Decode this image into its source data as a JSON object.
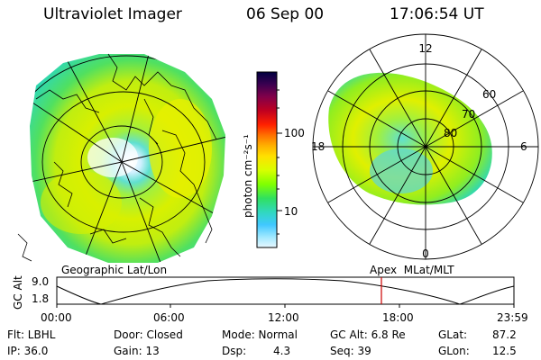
{
  "header": {
    "title": "Ultraviolet Imager",
    "date": "06 Sep 00",
    "time": "17:06:54 UT"
  },
  "colorbar": {
    "unit_label": "photon cm⁻²s⁻¹",
    "ticks": [
      "100",
      "10"
    ],
    "scale": "log",
    "colors": [
      "#000040",
      "#3a0050",
      "#80004a",
      "#c00020",
      "#ff2000",
      "#ff7000",
      "#ffb000",
      "#ffe000",
      "#d8ff00",
      "#80ff00",
      "#30e060",
      "#30d8c0",
      "#40c8ff",
      "#a0e8ff",
      "#e8f8ff"
    ]
  },
  "left_panel": {
    "caption": "Geographic Lat/Lon"
  },
  "right_panel": {
    "caption": "Apex  MLat/MLT",
    "mlt_labels": [
      "12",
      "18",
      "6",
      "0"
    ],
    "lat_labels": [
      "60",
      "70",
      "80"
    ]
  },
  "altitude_plot": {
    "ylabel": "GC Alt",
    "yticks": [
      "9.0",
      "1.8"
    ],
    "xticks": [
      "00:00",
      "06:00",
      "12:00",
      "18:00",
      "23:59"
    ],
    "current_time_marker_color": "#cc0000"
  },
  "status": {
    "flt": "Flt: LBHL",
    "ip": "IP: 36.0",
    "door": "Door: Closed",
    "gain": "Gain: 13",
    "mode": "Mode: Normal",
    "dsp_label": "Dsp:",
    "dsp_value": "4.3",
    "gc_alt": "GC Alt: 6.8 Re",
    "seq": "Seq: 39",
    "glat_label": "GLat:",
    "glat_value": "87.2",
    "glon_label": "GLon:",
    "glon_value": "12.5"
  }
}
